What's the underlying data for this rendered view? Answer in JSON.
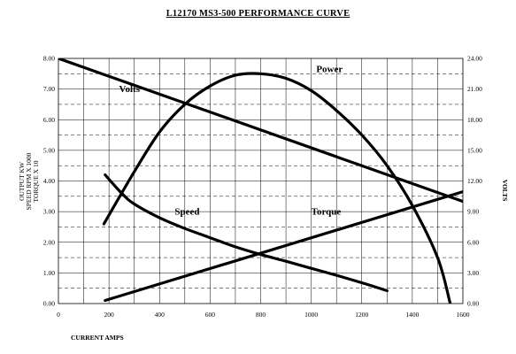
{
  "chart_data": {
    "type": "line",
    "title": "L12170 MS3-500 PERFORMANCE CURVE",
    "xlabel": "CURRENT AMPS",
    "ylabel_left": [
      "OUTPUT KW",
      "SPEED RPM X 1000",
      "TORQUE X 10"
    ],
    "ylabel_right": "VOLTS",
    "xlim": [
      0,
      1600
    ],
    "ylim_left": [
      0,
      8
    ],
    "ylim_right": [
      0,
      24
    ],
    "x_ticks": [
      "0",
      "200",
      "400",
      "600",
      "800",
      "1000",
      "1200",
      "1400",
      "1600"
    ],
    "y_ticks_left": [
      "0.00",
      "1.00",
      "2.00",
      "3.00",
      "4.00",
      "5.00",
      "6.00",
      "7.00",
      "8.00"
    ],
    "y_ticks_right": [
      "0.00",
      "3.00",
      "6.00",
      "9.00",
      "12.00",
      "15.00",
      "18.00",
      "21.00",
      "24.00"
    ],
    "grid": true,
    "series": [
      {
        "name": "Volts",
        "axis": "right",
        "x": [
          0,
          1600
        ],
        "y": [
          24.0,
          10.0
        ]
      },
      {
        "name": "Power",
        "axis": "left",
        "x": [
          180,
          300,
          400,
          500,
          600,
          700,
          800,
          900,
          1000,
          1100,
          1200,
          1300,
          1400,
          1500,
          1550
        ],
        "y": [
          2.6,
          4.3,
          5.6,
          6.5,
          7.1,
          7.45,
          7.5,
          7.35,
          6.95,
          6.3,
          5.5,
          4.5,
          3.2,
          1.5,
          0.0
        ]
      },
      {
        "name": "Speed",
        "axis": "left",
        "x": [
          185,
          250,
          300,
          400,
          500,
          600,
          700,
          800,
          900,
          1000,
          1100,
          1200,
          1300
        ],
        "y": [
          4.2,
          3.6,
          3.25,
          2.8,
          2.45,
          2.15,
          1.85,
          1.6,
          1.38,
          1.15,
          0.92,
          0.68,
          0.42
        ]
      },
      {
        "name": "Torque",
        "axis": "left",
        "x": [
          185,
          1600
        ],
        "y": [
          0.1,
          3.65
        ]
      }
    ],
    "series_labels": [
      {
        "name": "Volts",
        "text": "Volts",
        "x": 240,
        "y": 6.9
      },
      {
        "name": "Power",
        "text": "Power",
        "x": 1020,
        "y": 7.55
      },
      {
        "name": "Speed",
        "text": "Speed",
        "x": 460,
        "y": 2.9
      },
      {
        "name": "Torque",
        "text": "Torque",
        "x": 1000,
        "y": 2.9
      }
    ]
  }
}
